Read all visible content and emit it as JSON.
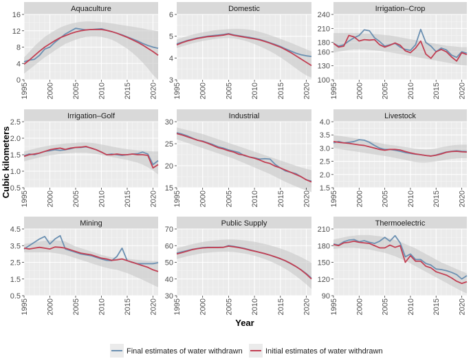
{
  "chart_data": {
    "type": "line",
    "xlabel": "Year",
    "ylabel": "Cubic kilometers",
    "x": [
      1995,
      1996,
      1997,
      1998,
      1999,
      2000,
      2001,
      2002,
      2003,
      2004,
      2005,
      2006,
      2007,
      2008,
      2009,
      2010,
      2011,
      2012,
      2013,
      2014,
      2015,
      2016,
      2017,
      2018,
      2019,
      2020,
      2021
    ],
    "xticks": [
      1995,
      2000,
      2005,
      2010,
      2015,
      2020
    ],
    "xlim": [
      1995,
      2021
    ],
    "legend": {
      "placement": "bottom",
      "entries": [
        {
          "label": "Final estimates of water withdrawn",
          "color": "#6a8fb1"
        },
        {
          "label": "Initial estimates of water withdrawn",
          "color": "#c23e52"
        }
      ]
    },
    "colors": {
      "final": "#6a8fb1",
      "initial": "#c23e52",
      "band": "#c8c8c8",
      "panel": "#ebebeb",
      "strip": "#d9d9d9"
    },
    "panels": [
      {
        "title": "Aquaculture",
        "ylim": [
          0,
          16
        ],
        "yticks": [
          0,
          4,
          8,
          12,
          16
        ],
        "final": [
          4.4,
          4.8,
          5.0,
          6.0,
          7.5,
          8.0,
          9.2,
          10.2,
          11.2,
          11.9,
          12.6,
          12.4,
          12.2,
          12.3,
          12.4,
          12.5,
          12.1,
          11.8,
          11.4,
          11.0,
          10.5,
          10.0,
          9.5,
          8.9,
          8.4,
          8.0,
          7.7
        ],
        "initial": [
          3.8,
          4.8,
          5.9,
          7.0,
          8.0,
          8.8,
          9.6,
          10.3,
          10.8,
          11.3,
          11.7,
          12.0,
          12.2,
          12.3,
          12.3,
          12.3,
          12.1,
          11.8,
          11.4,
          10.9,
          10.4,
          9.8,
          9.2,
          8.5,
          7.7,
          6.9,
          6.0
        ],
        "band_lower": [
          1.5,
          2.5,
          3.5,
          4.5,
          5.5,
          6.3,
          7.2,
          8.0,
          8.8,
          9.3,
          9.8,
          10.2,
          10.5,
          10.6,
          10.6,
          10.5,
          10.2,
          9.8,
          9.2,
          8.4,
          7.6,
          6.6,
          5.5,
          4.2,
          2.8,
          1.2,
          0.0
        ],
        "band_upper": [
          5.5,
          6.8,
          8.2,
          9.4,
          10.5,
          11.3,
          12.1,
          12.8,
          13.3,
          13.7,
          14.0,
          14.2,
          14.3,
          14.3,
          14.2,
          14.1,
          14.0,
          13.8,
          13.6,
          13.4,
          13.2,
          13.0,
          12.8,
          12.6,
          12.3,
          12.1,
          11.9
        ]
      },
      {
        "title": "Domestic",
        "ylim": [
          3,
          6
        ],
        "yticks": [
          3,
          4,
          5,
          6
        ],
        "final": [
          4.65,
          4.72,
          4.8,
          4.86,
          4.92,
          4.96,
          5.0,
          5.03,
          5.05,
          5.08,
          5.12,
          5.06,
          5.02,
          4.98,
          4.95,
          4.9,
          4.85,
          4.78,
          4.7,
          4.62,
          4.53,
          4.42,
          4.32,
          4.22,
          4.15,
          4.1,
          4.07
        ],
        "initial": [
          4.6,
          4.7,
          4.78,
          4.84,
          4.9,
          4.94,
          4.98,
          5.0,
          5.02,
          5.05,
          5.1,
          5.04,
          5.0,
          4.96,
          4.92,
          4.88,
          4.83,
          4.76,
          4.68,
          4.59,
          4.5,
          4.38,
          4.25,
          4.1,
          3.95,
          3.8,
          3.65
        ],
        "band_lower": [
          4.45,
          4.53,
          4.6,
          4.67,
          4.73,
          4.78,
          4.82,
          4.86,
          4.89,
          4.91,
          4.92,
          4.9,
          4.86,
          4.8,
          4.73,
          4.64,
          4.54,
          4.43,
          4.31,
          4.18,
          4.03,
          3.87,
          3.7,
          3.52,
          3.35,
          3.2,
          3.1
        ],
        "band_upper": [
          4.85,
          4.93,
          5.0,
          5.07,
          5.13,
          5.18,
          5.22,
          5.26,
          5.29,
          5.31,
          5.33,
          5.34,
          5.34,
          5.33,
          5.3,
          5.26,
          5.2,
          5.13,
          5.05,
          4.97,
          4.88,
          4.79,
          4.7,
          4.6,
          4.5,
          4.4,
          4.3
        ]
      },
      {
        "title": "Irrigation–Crop",
        "ylim": [
          100,
          240
        ],
        "yticks": [
          100,
          130,
          160,
          180,
          210,
          240
        ],
        "final": [
          178,
          172,
          175,
          183,
          190,
          195,
          207,
          205,
          190,
          182,
          172,
          175,
          178,
          170,
          165,
          163,
          175,
          208,
          180,
          172,
          160,
          168,
          164,
          153,
          148,
          160,
          157
        ],
        "initial": [
          178,
          170,
          172,
          195,
          192,
          183,
          186,
          185,
          186,
          175,
          170,
          174,
          179,
          174,
          162,
          158,
          168,
          183,
          155,
          146,
          160,
          165,
          160,
          149,
          140,
          158,
          154
        ],
        "band_lower": [
          158,
          160,
          162,
          164,
          165,
          165,
          165,
          164,
          163,
          162,
          160,
          159,
          157,
          155,
          153,
          151,
          149,
          147,
          145,
          143,
          141,
          139,
          137,
          135,
          133,
          131,
          130
        ],
        "band_upper": [
          200,
          200,
          200,
          200,
          200,
          200,
          199,
          199,
          198,
          197,
          196,
          195,
          193,
          191,
          189,
          187,
          185,
          183,
          181,
          179,
          177,
          175,
          173,
          172,
          171,
          170,
          170
        ]
      },
      {
        "title": "Irrigation–Golf",
        "ylim": [
          0.5,
          2.5
        ],
        "yticks": [
          0.5,
          1.0,
          1.5,
          2.0,
          2.5
        ],
        "final": [
          1.47,
          1.52,
          1.5,
          1.55,
          1.6,
          1.62,
          1.65,
          1.63,
          1.65,
          1.68,
          1.72,
          1.72,
          1.74,
          1.7,
          1.65,
          1.58,
          1.5,
          1.52,
          1.5,
          1.48,
          1.5,
          1.52,
          1.53,
          1.58,
          1.52,
          1.2,
          1.32
        ],
        "initial": [
          1.45,
          1.5,
          1.52,
          1.55,
          1.6,
          1.65,
          1.68,
          1.7,
          1.66,
          1.7,
          1.72,
          1.73,
          1.75,
          1.7,
          1.65,
          1.58,
          1.5,
          1.5,
          1.52,
          1.5,
          1.5,
          1.52,
          1.5,
          1.5,
          1.48,
          1.1,
          1.2
        ],
        "band_lower": [
          1.3,
          1.34,
          1.38,
          1.42,
          1.45,
          1.48,
          1.5,
          1.52,
          1.54,
          1.55,
          1.56,
          1.56,
          1.56,
          1.54,
          1.52,
          1.49,
          1.46,
          1.43,
          1.4,
          1.37,
          1.34,
          1.3,
          1.26,
          1.2,
          1.12,
          1.02,
          0.9
        ],
        "band_upper": [
          1.6,
          1.64,
          1.68,
          1.72,
          1.75,
          1.78,
          1.8,
          1.82,
          1.84,
          1.85,
          1.86,
          1.87,
          1.87,
          1.86,
          1.84,
          1.81,
          1.78,
          1.75,
          1.72,
          1.69,
          1.67,
          1.65,
          1.63,
          1.62,
          1.61,
          1.6,
          1.6
        ]
      },
      {
        "title": "Industrial",
        "ylim": [
          15,
          30
        ],
        "yticks": [
          15,
          20,
          25,
          30
        ],
        "final": [
          27.5,
          27.2,
          26.8,
          26.3,
          25.8,
          25.6,
          25.2,
          24.8,
          24.3,
          24.0,
          23.6,
          23.3,
          23.0,
          22.3,
          22.0,
          21.8,
          21.5,
          21.6,
          21.5,
          20.3,
          19.5,
          18.8,
          18.5,
          18.2,
          17.5,
          16.8,
          16.5
        ],
        "initial": [
          27.3,
          27.0,
          26.6,
          26.2,
          25.8,
          25.5,
          25.1,
          24.6,
          24.1,
          23.8,
          23.4,
          23.1,
          22.6,
          22.4,
          22.0,
          21.7,
          21.3,
          20.8,
          20.5,
          19.9,
          19.5,
          19.0,
          18.5,
          18.0,
          17.5,
          16.8,
          16.3
        ],
        "band_lower": [
          26.0,
          25.6,
          25.2,
          24.8,
          24.4,
          24.0,
          23.6,
          23.2,
          22.8,
          22.4,
          22.0,
          21.6,
          21.1,
          20.6,
          20.1,
          19.6,
          19.1,
          18.6,
          18.1,
          17.5,
          16.9,
          16.3,
          15.8,
          15.3,
          14.8,
          14.4,
          14.0
        ],
        "band_upper": [
          28.7,
          28.4,
          28.1,
          27.8,
          27.5,
          27.2,
          26.8,
          26.4,
          26.0,
          25.6,
          25.2,
          24.8,
          24.4,
          24.0,
          23.6,
          23.2,
          22.8,
          22.4,
          22.0,
          21.6,
          21.2,
          20.8,
          20.4,
          20.0,
          19.6,
          19.3,
          19.0
        ]
      },
      {
        "title": "Livestock",
        "ylim": [
          1.5,
          4.0
        ],
        "yticks": [
          1.5,
          2.0,
          2.5,
          3.0,
          3.5,
          4.0
        ],
        "final": [
          3.2,
          3.25,
          3.2,
          3.22,
          3.25,
          3.32,
          3.3,
          3.22,
          3.1,
          3.0,
          2.95,
          2.95,
          2.92,
          2.88,
          2.83,
          2.8,
          2.77,
          2.75,
          2.72,
          2.7,
          2.74,
          2.8,
          2.85,
          2.88,
          2.9,
          2.88,
          2.87
        ],
        "initial": [
          3.25,
          3.22,
          3.2,
          3.18,
          3.15,
          3.12,
          3.1,
          3.05,
          3.0,
          2.95,
          2.92,
          2.95,
          2.95,
          2.93,
          2.87,
          2.82,
          2.78,
          2.75,
          2.72,
          2.7,
          2.73,
          2.78,
          2.84,
          2.87,
          2.88,
          2.86,
          2.85
        ],
        "band_lower": [
          3.0,
          2.97,
          2.94,
          2.91,
          2.88,
          2.85,
          2.82,
          2.79,
          2.76,
          2.73,
          2.7,
          2.67,
          2.63,
          2.59,
          2.55,
          2.51,
          2.47,
          2.45,
          2.45,
          2.47,
          2.5,
          2.53,
          2.56,
          2.59,
          2.61,
          2.62,
          2.62
        ],
        "band_upper": [
          3.5,
          3.47,
          3.44,
          3.41,
          3.38,
          3.35,
          3.31,
          3.27,
          3.23,
          3.19,
          3.15,
          3.12,
          3.1,
          3.07,
          3.04,
          3.01,
          2.98,
          2.96,
          2.95,
          2.96,
          2.99,
          3.03,
          3.07,
          3.1,
          3.12,
          3.13,
          3.13
        ]
      },
      {
        "title": "Mining",
        "ylim": [
          0.5,
          4.5
        ],
        "yticks": [
          0.5,
          1.5,
          2.5,
          3.5,
          4.5
        ],
        "final": [
          3.3,
          3.5,
          3.7,
          3.9,
          4.05,
          3.6,
          3.9,
          4.1,
          3.3,
          3.2,
          3.1,
          3.0,
          2.95,
          2.9,
          2.8,
          2.7,
          2.62,
          2.6,
          2.85,
          3.35,
          2.6,
          2.5,
          2.42,
          2.42,
          2.42,
          2.42,
          2.48
        ],
        "initial": [
          3.35,
          3.3,
          3.35,
          3.4,
          3.35,
          3.3,
          3.42,
          3.4,
          3.35,
          3.25,
          3.15,
          3.05,
          3.0,
          2.95,
          2.85,
          2.75,
          2.7,
          2.62,
          2.65,
          2.7,
          2.6,
          2.5,
          2.4,
          2.3,
          2.2,
          2.05,
          1.95
        ],
        "band_lower": [
          3.1,
          3.1,
          3.1,
          3.1,
          3.1,
          3.1,
          3.05,
          3.0,
          2.95,
          2.85,
          2.75,
          2.65,
          2.55,
          2.45,
          2.35,
          2.25,
          2.17,
          2.1,
          2.05,
          1.95,
          1.85,
          1.72,
          1.58,
          1.45,
          1.3,
          1.15,
          1.0
        ],
        "band_upper": [
          3.6,
          3.65,
          3.7,
          3.75,
          3.8,
          3.82,
          3.82,
          3.8,
          3.75,
          3.6,
          3.45,
          3.35,
          3.25,
          3.15,
          3.05,
          2.95,
          2.87,
          2.8,
          2.77,
          2.75,
          2.72,
          2.68,
          2.65,
          2.62,
          2.6,
          2.58,
          2.57
        ]
      },
      {
        "title": "Public Supply",
        "ylim": [
          30,
          70
        ],
        "yticks": [
          30,
          40,
          50,
          60,
          70
        ],
        "final": [
          55.5,
          56.3,
          57.0,
          57.8,
          58.3,
          58.8,
          59.0,
          59.0,
          59.0,
          59.0,
          60.0,
          59.6,
          59.0,
          58.4,
          57.6,
          56.8,
          56.0,
          55.2,
          54.3,
          53.2,
          52.1,
          50.8,
          49.2,
          47.5,
          45.5,
          43.2,
          40.5
        ],
        "initial": [
          55.0,
          55.8,
          56.7,
          57.6,
          58.2,
          58.6,
          58.8,
          58.9,
          58.9,
          59.0,
          59.7,
          59.3,
          58.8,
          58.2,
          57.4,
          56.7,
          56.0,
          55.2,
          54.3,
          53.3,
          52.2,
          50.9,
          49.3,
          47.5,
          45.4,
          42.9,
          40.0
        ],
        "band_lower": [
          52.0,
          52.8,
          53.6,
          54.3,
          54.9,
          55.4,
          55.8,
          56.1,
          56.3,
          56.4,
          56.4,
          56.2,
          55.8,
          55.3,
          54.7,
          53.9,
          53.0,
          51.9,
          50.7,
          49.3,
          47.8,
          46.0,
          44.0,
          41.8,
          39.4,
          36.8,
          34.0
        ],
        "band_upper": [
          58.5,
          59.3,
          60.1,
          60.9,
          61.6,
          62.2,
          62.7,
          63.1,
          63.4,
          63.6,
          63.7,
          63.7,
          63.5,
          63.2,
          62.8,
          62.3,
          61.7,
          61.0,
          60.2,
          59.3,
          58.3,
          57.2,
          56.0,
          54.6,
          53.1,
          51.5,
          49.8
        ]
      },
      {
        "title": "Thermoelectric",
        "ylim": [
          90,
          210
        ],
        "yticks": [
          90,
          120,
          150,
          180,
          210
        ],
        "final": [
          183,
          181,
          187,
          190,
          191,
          187,
          189,
          186,
          184,
          188,
          195,
          188,
          198,
          185,
          160,
          165,
          155,
          155,
          148,
          145,
          138,
          137,
          135,
          132,
          128,
          120,
          126
        ],
        "initial": [
          182,
          180,
          185,
          186,
          188,
          186,
          185,
          184,
          180,
          176,
          176,
          181,
          177,
          180,
          150,
          162,
          152,
          152,
          143,
          140,
          133,
          130,
          127,
          122,
          116,
          112,
          115
        ],
        "band_lower": [
          174,
          175,
          176,
          176,
          176,
          175,
          174,
          173,
          171,
          169,
          167,
          164,
          161,
          157,
          153,
          148,
          143,
          138,
          133,
          128,
          123,
          118,
          113,
          108,
          103,
          98,
          94
        ],
        "band_upper": [
          191,
          193,
          195,
          197,
          198,
          199,
          199,
          199,
          198,
          197,
          195,
          193,
          190,
          187,
          183,
          179,
          175,
          170,
          165,
          160,
          155,
          150,
          146,
          142,
          138,
          134,
          130
        ]
      }
    ]
  }
}
